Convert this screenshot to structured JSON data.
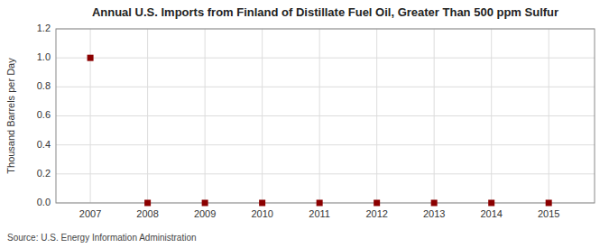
{
  "chart_data": {
    "type": "scatter",
    "title": "Annual U.S. Imports from Finland of Distillate Fuel Oil, Greater Than 500 ppm Sulfur",
    "y_label": "Thousand Barrels per Day",
    "source": "Source: U.S. Energy Information Administration",
    "x": [
      2007,
      2008,
      2009,
      2010,
      2011,
      2012,
      2013,
      2014,
      2015
    ],
    "values": [
      1.0,
      0.0,
      0.0,
      0.0,
      0.0,
      0.0,
      0.0,
      0.0,
      0.0
    ],
    "color": "#8b0000",
    "marker": "square",
    "xlim": [
      2006.4,
      2015.8
    ],
    "xticks": [
      2007,
      2008,
      2009,
      2010,
      2011,
      2012,
      2013,
      2014,
      2015
    ],
    "ylim": [
      0.0,
      1.2
    ],
    "yticks": [
      {
        "value": 0.0,
        "label": "0.0"
      },
      0.2,
      0.4,
      0.6,
      0.8,
      {
        "value": 1.0,
        "label": "1.0"
      },
      1.2
    ],
    "grid": true
  }
}
